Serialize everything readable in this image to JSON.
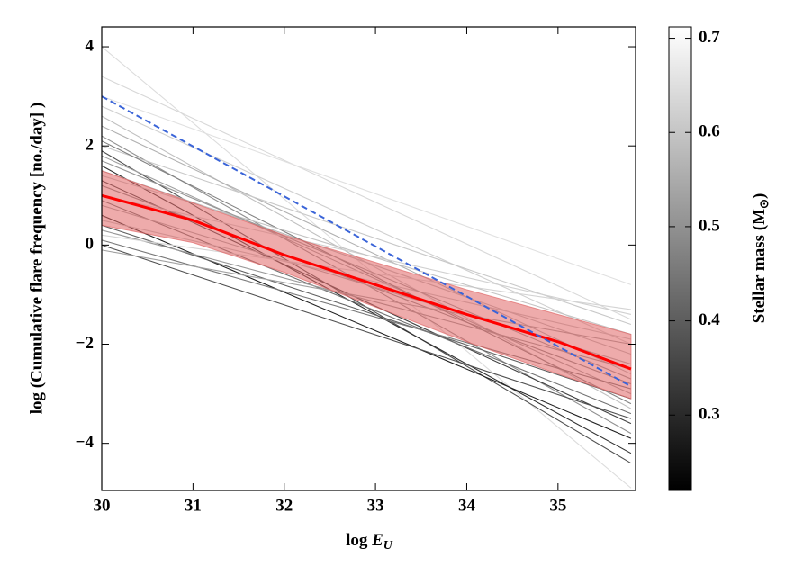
{
  "chart_data": {
    "type": "line",
    "xlabel": [
      "log ",
      "E",
      "U"
    ],
    "ylabel": "log (Cumulative flare frequency [no./day] )",
    "x": [
      30,
      35.8
    ],
    "xlim": [
      30,
      35.85
    ],
    "xticks": [
      30,
      31,
      32,
      33,
      34,
      35
    ],
    "ylim": [
      -4.95,
      4.4
    ],
    "yticks": [
      -4,
      -2,
      0,
      2,
      4
    ],
    "series": [
      {
        "color": "#dcdcdc",
        "values": [
          4.0,
          -4.9
        ]
      },
      {
        "color": "#d8d8d8",
        "values": [
          3.4,
          -1.5
        ]
      },
      {
        "color": "#e0e0e0",
        "values": [
          3.0,
          -0.8
        ]
      },
      {
        "color": "#cfcfcf",
        "values": [
          2.8,
          -2.0
        ]
      },
      {
        "color": "#c0c0c0",
        "values": [
          2.6,
          -3.3
        ]
      },
      {
        "color": "#b0b0b0",
        "values": [
          2.4,
          -2.6
        ]
      },
      {
        "color": "#909090",
        "values": [
          2.2,
          -3.8
        ]
      },
      {
        "color": "#c8c8c8",
        "values": [
          2.0,
          -1.6
        ]
      },
      {
        "color": "#505050",
        "values": [
          1.9,
          -4.4
        ]
      },
      {
        "color": "#a0a0a0",
        "values": [
          1.8,
          -3.0
        ]
      },
      {
        "color": "#303030",
        "values": [
          1.6,
          -4.2
        ]
      },
      {
        "color": "#b8b8b8",
        "values": [
          1.5,
          -2.2
        ]
      },
      {
        "color": "#404040",
        "values": [
          1.3,
          -3.6
        ]
      },
      {
        "color": "#888888",
        "values": [
          1.2,
          -2.8
        ]
      },
      {
        "color": "#d0d0d0",
        "values": [
          1.0,
          -1.4
        ]
      },
      {
        "color": "#707070",
        "values": [
          0.9,
          -3.4
        ]
      },
      {
        "color": "#a8a8a8",
        "values": [
          0.8,
          -2.4
        ]
      },
      {
        "color": "#202020",
        "values": [
          0.6,
          -3.9
        ]
      },
      {
        "color": "#c0c0c0",
        "values": [
          0.5,
          -1.9
        ]
      },
      {
        "color": "#606060",
        "values": [
          0.4,
          -3.1
        ]
      },
      {
        "color": "#989898",
        "values": [
          0.3,
          -2.5
        ]
      },
      {
        "color": "#d4d4d4",
        "values": [
          0.2,
          -1.3
        ]
      },
      {
        "color": "#787878",
        "values": [
          0.1,
          -2.9
        ]
      },
      {
        "color": "#505050",
        "values": [
          0.0,
          -3.5
        ]
      },
      {
        "color": "#a0a0a0",
        "values": [
          -0.1,
          -2.0
        ]
      },
      {
        "color": "#808080",
        "values": [
          2.1,
          -3.2
        ]
      },
      {
        "color": "#c4c4c4",
        "values": [
          1.4,
          -1.8
        ]
      },
      {
        "color": "#989898",
        "values": [
          1.7,
          -2.7
        ]
      }
    ],
    "band": {
      "color": "#e06666",
      "x": [
        30,
        31,
        32,
        33,
        34,
        35,
        35.8
      ],
      "upper": [
        1.5,
        0.85,
        0.2,
        -0.35,
        -0.9,
        -1.4,
        -1.8
      ],
      "lower": [
        0.4,
        0.05,
        -0.55,
        -1.25,
        -1.95,
        -2.6,
        -3.1
      ]
    },
    "highlight": [
      {
        "color": "#ff0000",
        "x": [
          30,
          31,
          32,
          33,
          34,
          35,
          35.8
        ],
        "values": [
          1.0,
          0.5,
          -0.2,
          -0.8,
          -1.4,
          -1.95,
          -2.5
        ]
      },
      {
        "color": "#3a64d8",
        "dashed": true,
        "x": [
          30,
          35.8
        ],
        "values": [
          3.0,
          -2.85
        ]
      }
    ],
    "colorbar": {
      "label": [
        "Stellar mass (M",
        "⊙",
        ")"
      ],
      "cmap": "gray",
      "lim": [
        0.22,
        0.712
      ],
      "ticks": [
        0.3,
        0.4,
        0.5,
        0.6,
        0.7
      ]
    }
  }
}
